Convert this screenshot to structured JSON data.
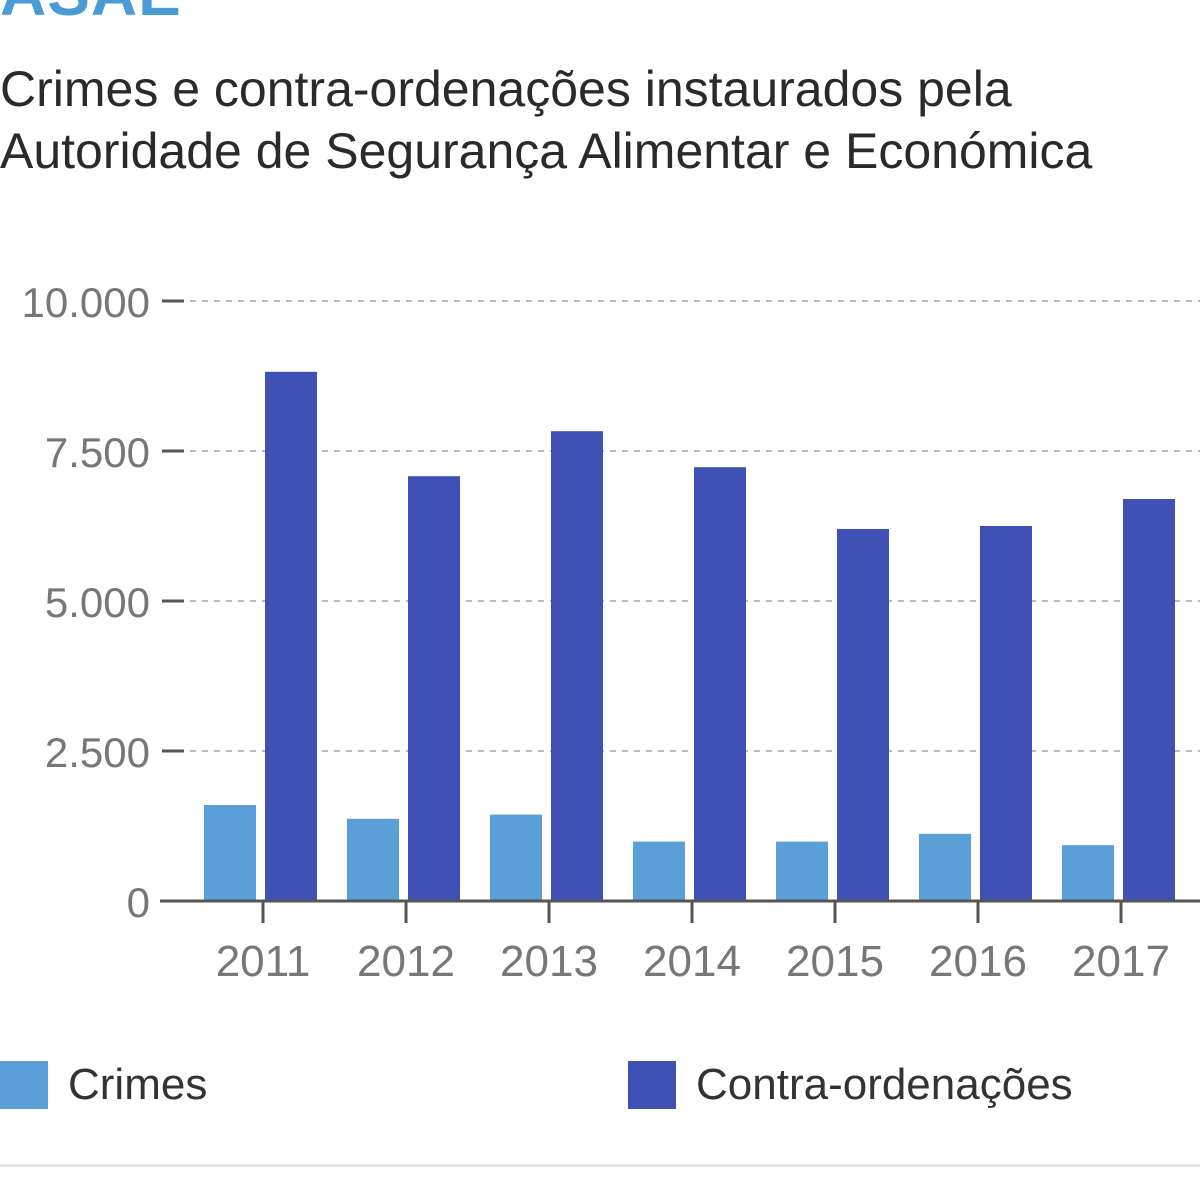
{
  "brand": {
    "title": "ASAE",
    "color": "#4a9bd6"
  },
  "header": {
    "subtitle_line1": "Crimes e contra-ordenações instaurados pela",
    "subtitle_line2": "Autoridade de Segurança Alimentar e Económica"
  },
  "chart_data": {
    "type": "bar",
    "title": "Crimes e contra-ordenações instaurados pela Autoridade de Segurança Alimentar e Económica",
    "xlabel": "",
    "ylabel": "",
    "ylim": [
      0,
      10000
    ],
    "grid": true,
    "legend_position": "bottom",
    "categories": [
      "2011",
      "2012",
      "2013",
      "2014",
      "2015",
      "2016",
      "2017"
    ],
    "y_ticks": [
      0,
      2500,
      5000,
      7500,
      10000
    ],
    "y_tick_labels": [
      "0",
      "2.500",
      "5.000",
      "7.500",
      "10.000"
    ],
    "series": [
      {
        "name": "Crimes",
        "color": "#5a9fd8",
        "values": [
          1600,
          1370,
          1440,
          990,
          990,
          1120,
          930
        ]
      },
      {
        "name": "Contra-ordenações",
        "color": "#3f51b5",
        "values": [
          8820,
          7080,
          7830,
          7230,
          6200,
          6250,
          6700
        ]
      }
    ]
  },
  "legend": [
    {
      "label": "Crimes",
      "color": "#5a9fd8"
    },
    {
      "label": "Contra-ordenações",
      "color": "#3f51b5"
    }
  ]
}
